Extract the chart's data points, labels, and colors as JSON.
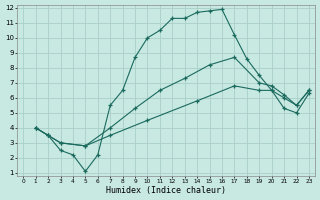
{
  "xlabel": "Humidex (Indice chaleur)",
  "background_color": "#c8e8e2",
  "grid_color": "#aad0c8",
  "line_color": "#1a6a5e",
  "xlim": [
    0,
    23
  ],
  "ylim": [
    1,
    12
  ],
  "xticks": [
    0,
    1,
    2,
    3,
    4,
    5,
    6,
    7,
    8,
    9,
    10,
    11,
    12,
    13,
    14,
    15,
    16,
    17,
    18,
    19,
    20,
    21,
    22,
    23
  ],
  "yticks": [
    1,
    2,
    3,
    4,
    5,
    6,
    7,
    8,
    9,
    10,
    11,
    12
  ],
  "line1_x": [
    1,
    2,
    3,
    4,
    5,
    6,
    7,
    8,
    9,
    10,
    11,
    12,
    13,
    14,
    15,
    16,
    17,
    18,
    19,
    20,
    21,
    22,
    23
  ],
  "line1_y": [
    4.0,
    3.5,
    2.5,
    2.2,
    1.1,
    2.2,
    5.5,
    6.5,
    8.7,
    10.0,
    10.5,
    11.3,
    11.3,
    11.7,
    11.8,
    11.9,
    10.2,
    8.6,
    7.5,
    6.5,
    5.3,
    5.0,
    6.3
  ],
  "line2_x": [
    1,
    2,
    3,
    5,
    7,
    9,
    11,
    13,
    15,
    17,
    19,
    20,
    21,
    22,
    23
  ],
  "line2_y": [
    4.0,
    3.5,
    3.0,
    2.8,
    4.0,
    5.3,
    6.5,
    7.3,
    8.2,
    8.7,
    7.0,
    6.8,
    6.2,
    5.5,
    6.5
  ],
  "line3_x": [
    1,
    2,
    3,
    5,
    7,
    10,
    14,
    17,
    19,
    20,
    21,
    22,
    23
  ],
  "line3_y": [
    4.0,
    3.5,
    3.0,
    2.8,
    3.5,
    4.5,
    5.8,
    6.8,
    6.5,
    6.5,
    6.0,
    5.5,
    6.5
  ]
}
